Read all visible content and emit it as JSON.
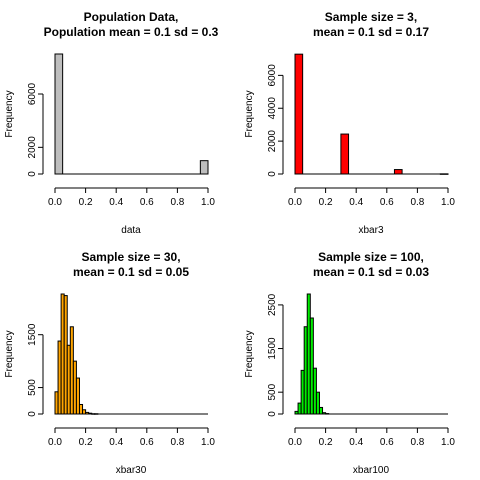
{
  "chart_data": [
    {
      "type": "bar",
      "title": [
        "Population Data,",
        "Population mean = 0.1 sd = 0.3"
      ],
      "xlabel": "data",
      "ylabel": "Frequency",
      "color": "#bebebe",
      "xlim": [
        0,
        1
      ],
      "xticks": [
        "0.0",
        "0.2",
        "0.4",
        "0.6",
        "0.8",
        "1.0"
      ],
      "yticks": [
        0,
        2000,
        6000
      ],
      "ylim": [
        0,
        9000
      ],
      "bins": [
        {
          "x0": 0.0,
          "x1": 0.05,
          "count": 9000
        },
        {
          "x0": 0.95,
          "x1": 1.0,
          "count": 1000
        }
      ]
    },
    {
      "type": "bar",
      "title": [
        "Sample size = 3,",
        "mean = 0.1 sd = 0.17"
      ],
      "xlabel": "xbar3",
      "ylabel": "Frequency",
      "color": "#ff0000",
      "xlim": [
        0,
        1
      ],
      "xticks": [
        "0.0",
        "0.2",
        "0.4",
        "0.6",
        "0.8",
        "1.0"
      ],
      "yticks": [
        0,
        2000,
        4000,
        6000
      ],
      "ylim": [
        0,
        7300
      ],
      "bins": [
        {
          "x0": 0.0,
          "x1": 0.05,
          "count": 7290
        },
        {
          "x0": 0.3,
          "x1": 0.35,
          "count": 2430
        },
        {
          "x0": 0.65,
          "x1": 0.7,
          "count": 270
        },
        {
          "x0": 0.95,
          "x1": 1.0,
          "count": 10
        }
      ]
    },
    {
      "type": "bar",
      "title": [
        "Sample size = 30,",
        "mean = 0.1 sd = 0.05"
      ],
      "xlabel": "xbar30",
      "ylabel": "Frequency",
      "color": "#ffa500",
      "xlim": [
        0,
        1
      ],
      "xticks": [
        "0.0",
        "0.2",
        "0.4",
        "0.6",
        "0.8",
        "1.0"
      ],
      "yticks": [
        0,
        500,
        1500
      ],
      "ylim": [
        0,
        2270
      ],
      "bins": [
        {
          "x0": 0.0,
          "x1": 0.02,
          "count": 420
        },
        {
          "x0": 0.02,
          "x1": 0.04,
          "count": 1380
        },
        {
          "x0": 0.04,
          "x1": 0.06,
          "count": 2270
        },
        {
          "x0": 0.06,
          "x1": 0.08,
          "count": 2240
        },
        {
          "x0": 0.08,
          "x1": 0.1,
          "count": 1300
        },
        {
          "x0": 0.1,
          "x1": 0.12,
          "count": 1650
        },
        {
          "x0": 0.12,
          "x1": 0.14,
          "count": 1000
        },
        {
          "x0": 0.14,
          "x1": 0.16,
          "count": 680
        },
        {
          "x0": 0.16,
          "x1": 0.18,
          "count": 180
        },
        {
          "x0": 0.18,
          "x1": 0.2,
          "count": 80
        },
        {
          "x0": 0.2,
          "x1": 0.22,
          "count": 30
        },
        {
          "x0": 0.22,
          "x1": 0.24,
          "count": 15
        },
        {
          "x0": 0.24,
          "x1": 0.26,
          "count": 5
        },
        {
          "x0": 0.26,
          "x1": 0.28,
          "count": 5
        }
      ]
    },
    {
      "type": "bar",
      "title": [
        "Sample size = 100,",
        "mean = 0.1 sd = 0.03"
      ],
      "xlabel": "xbar100",
      "ylabel": "Frequency",
      "color": "#00ee00",
      "xlim": [
        0,
        1
      ],
      "xticks": [
        "0.0",
        "0.2",
        "0.4",
        "0.6",
        "0.8",
        "1.0"
      ],
      "yticks": [
        0,
        500,
        1500,
        2500
      ],
      "ylim": [
        0,
        2750
      ],
      "bins": [
        {
          "x0": 0.0,
          "x1": 0.02,
          "count": 60
        },
        {
          "x0": 0.02,
          "x1": 0.04,
          "count": 250
        },
        {
          "x0": 0.04,
          "x1": 0.06,
          "count": 1000
        },
        {
          "x0": 0.06,
          "x1": 0.08,
          "count": 2000
        },
        {
          "x0": 0.08,
          "x1": 0.1,
          "count": 2750
        },
        {
          "x0": 0.1,
          "x1": 0.12,
          "count": 2200
        },
        {
          "x0": 0.12,
          "x1": 0.14,
          "count": 1050
        },
        {
          "x0": 0.14,
          "x1": 0.16,
          "count": 500
        },
        {
          "x0": 0.16,
          "x1": 0.18,
          "count": 150
        },
        {
          "x0": 0.18,
          "x1": 0.2,
          "count": 30
        },
        {
          "x0": 0.2,
          "x1": 0.22,
          "count": 10
        }
      ]
    }
  ]
}
